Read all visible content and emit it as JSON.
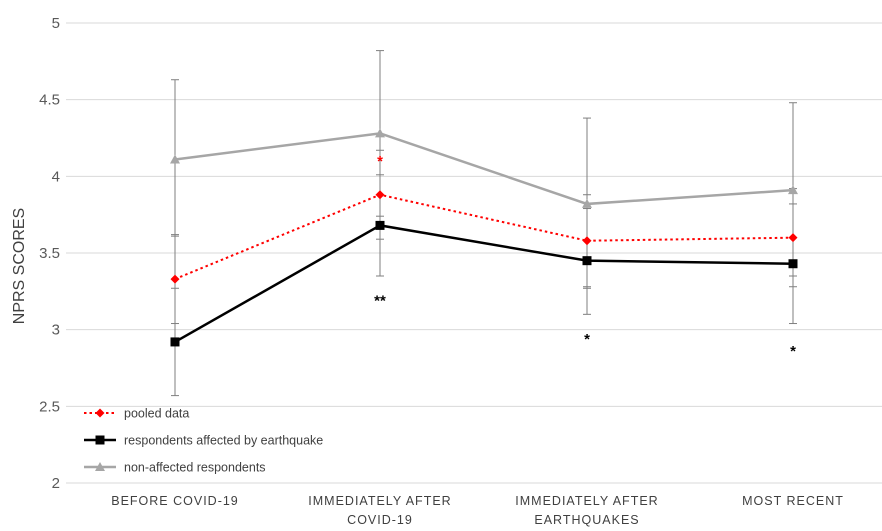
{
  "chart_data": {
    "type": "line",
    "title": "",
    "xlabel": "",
    "ylabel": "NPRS   SCORES",
    "ylim": [
      2,
      5
    ],
    "yticks": [
      "2",
      "2.5",
      "3",
      "3.5",
      "4",
      "4.5",
      "5"
    ],
    "grid": true,
    "legend_position": "bottom-left",
    "categories": [
      [
        "BEFORE COVID-19"
      ],
      [
        "IMMEDIATELY AFTER",
        "COVID-19"
      ],
      [
        "IMMEDIATELY AFTER",
        "EARTHQUAKES"
      ],
      [
        "MOST RECENT"
      ]
    ],
    "series": [
      {
        "name": "non-affected respondents",
        "color": "#a6a6a6",
        "marker": "triangle",
        "line_style": "solid",
        "values": [
          4.11,
          4.28,
          3.82,
          3.91
        ],
        "error_low": [
          3.61,
          3.74,
          3.27,
          3.35
        ],
        "error_high": [
          4.63,
          4.82,
          4.38,
          4.48
        ]
      },
      {
        "name": "pooled data",
        "color": "#ff0000",
        "marker": "diamond",
        "line_style": "dotted",
        "values": [
          3.33,
          3.88,
          3.58,
          3.6
        ],
        "error_low": [
          3.04,
          3.59,
          3.28,
          3.28
        ],
        "error_high": [
          3.62,
          4.17,
          3.88,
          3.92
        ]
      },
      {
        "name": "respondents affected by earthquake",
        "color": "#000000",
        "marker": "square",
        "line_style": "solid",
        "values": [
          2.92,
          3.68,
          3.45,
          3.43
        ],
        "error_low": [
          2.57,
          3.35,
          3.1,
          3.04
        ],
        "error_high": [
          3.27,
          4.01,
          3.79,
          3.82
        ]
      }
    ],
    "annotations": [
      {
        "text": "*",
        "category_index": 1,
        "y": 4.1,
        "color": "#ff0000"
      },
      {
        "text": "**",
        "category_index": 1,
        "y": 3.19,
        "color": "#000000"
      },
      {
        "text": "*",
        "category_index": 2,
        "y": 2.94,
        "color": "#000000"
      },
      {
        "text": "*",
        "category_index": 3,
        "y": 2.86,
        "color": "#000000"
      }
    ],
    "legend": [
      {
        "label": "pooled data",
        "series_index": 1
      },
      {
        "label": "respondents affected by earthquake",
        "series_index": 2
      },
      {
        "label": "non-affected respondents",
        "series_index": 0
      }
    ]
  }
}
